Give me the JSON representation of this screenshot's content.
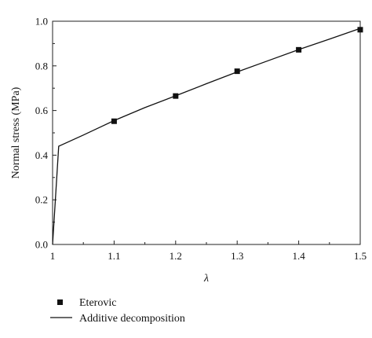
{
  "chart_data": {
    "type": "scatter",
    "xlabel": "λ",
    "ylabel": "Normal stress (MPa)",
    "xlim": [
      1.0,
      1.5
    ],
    "ylim": [
      0.0,
      1.0
    ],
    "x_ticks": [
      "1",
      "1.1",
      "1.2",
      "1.3",
      "1.4",
      "1.5"
    ],
    "x_tick_values": [
      1.0,
      1.1,
      1.2,
      1.3,
      1.4,
      1.5
    ],
    "y_ticks": [
      "0.0",
      "0.2",
      "0.4",
      "0.6",
      "0.8",
      "1.0"
    ],
    "y_tick_values": [
      0.0,
      0.2,
      0.4,
      0.6,
      0.8,
      1.0
    ],
    "grid": false,
    "legend_position": "bottom-left",
    "series": [
      {
        "name": "Eterovic",
        "marker": "square",
        "color": "#111111",
        "x": [
          1.1,
          1.2,
          1.3,
          1.4,
          1.5
        ],
        "y": [
          0.552,
          0.665,
          0.776,
          0.872,
          0.962
        ]
      },
      {
        "name": "Additive decomposition",
        "marker": "line",
        "color": "#111111",
        "x": [
          1.0,
          1.01,
          1.05,
          1.1,
          1.15,
          1.2,
          1.25,
          1.3,
          1.35,
          1.4,
          1.45,
          1.5
        ],
        "y": [
          0.0,
          0.44,
          0.49,
          0.555,
          0.613,
          0.666,
          0.72,
          0.773,
          0.823,
          0.873,
          0.92,
          0.968
        ]
      }
    ]
  }
}
